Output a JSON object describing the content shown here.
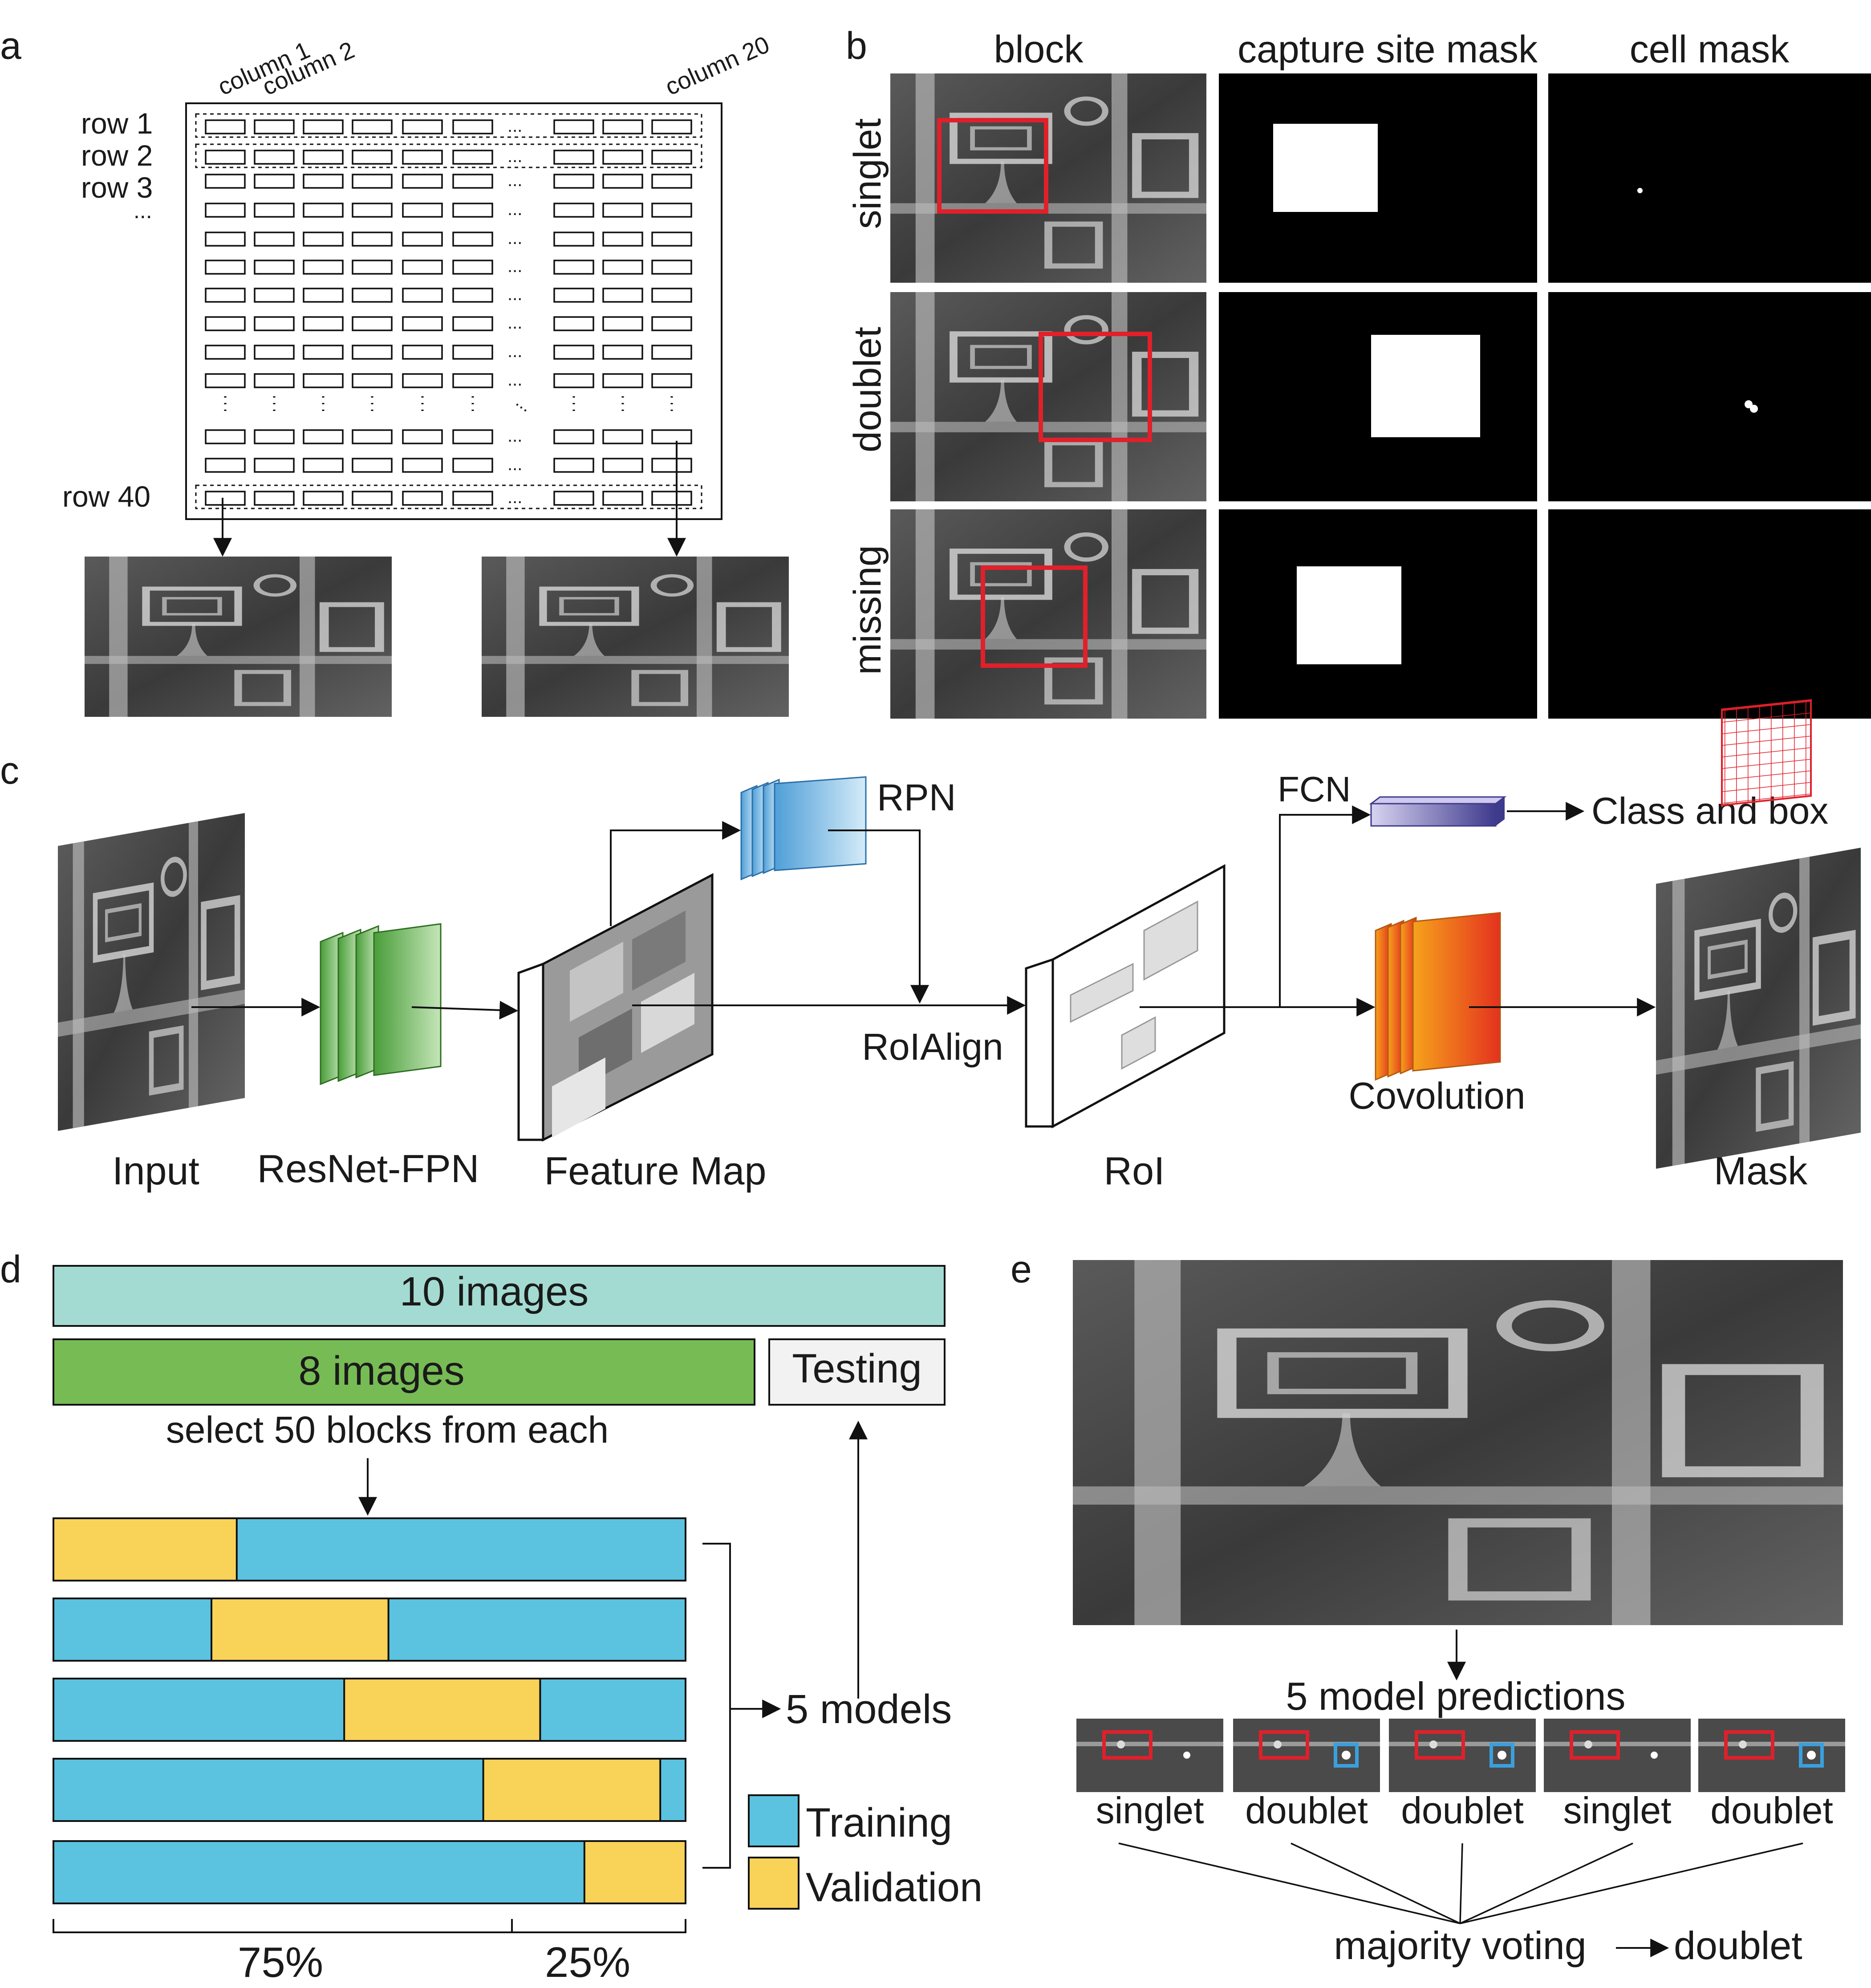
{
  "panel_letters": [
    "a",
    "b",
    "c",
    "d",
    "e"
  ],
  "panel_a": {
    "column_labels": [
      "column 1",
      "column 2",
      "column 20"
    ],
    "row_labels": [
      "row 1",
      "row 2",
      "row 3",
      "...",
      "row 40"
    ],
    "ellipsis": "..."
  },
  "panel_b": {
    "column_headers": [
      "block",
      "capture site mask",
      "cell  mask"
    ],
    "row_labels": [
      "singlet",
      "doublet",
      "missing"
    ]
  },
  "panel_c": {
    "stages": [
      "Input",
      "ResNet-FPN",
      "Feature Map",
      "RoI",
      "Mask"
    ],
    "rpn": "RPN",
    "roialign": "RoIAlign",
    "fcn": "FCN",
    "class_box": "Class and box",
    "convolution": "Covolution"
  },
  "panel_d": {
    "all_images": "10 images",
    "train_images": "8 images",
    "testing": "Testing",
    "select_note": "select 50 blocks from each",
    "models_label": "5  models",
    "legend_training": "Training",
    "legend_validation": "Validation",
    "pct_train": "75%",
    "pct_test": "25%",
    "folds": 5,
    "colors": {
      "training": "#5bc2e0",
      "validation": "#f9d258",
      "all": "#a3dbd2",
      "train8": "#77bb55",
      "testing": "#f2f2f2"
    }
  },
  "panel_e": {
    "predictions_title": "5 model predictions",
    "predictions": [
      "singlet",
      "doublet",
      "doublet",
      "singlet",
      "doublet"
    ],
    "vote_label": "majority voting",
    "result": "doublet"
  },
  "colors": {
    "red_box": "#e0202a",
    "blue_box": "#3aa0dd",
    "green": "#5fae4a",
    "blue_block": "#8ec4e8",
    "orange": "#f5a623",
    "purple": "#8a84c8"
  }
}
